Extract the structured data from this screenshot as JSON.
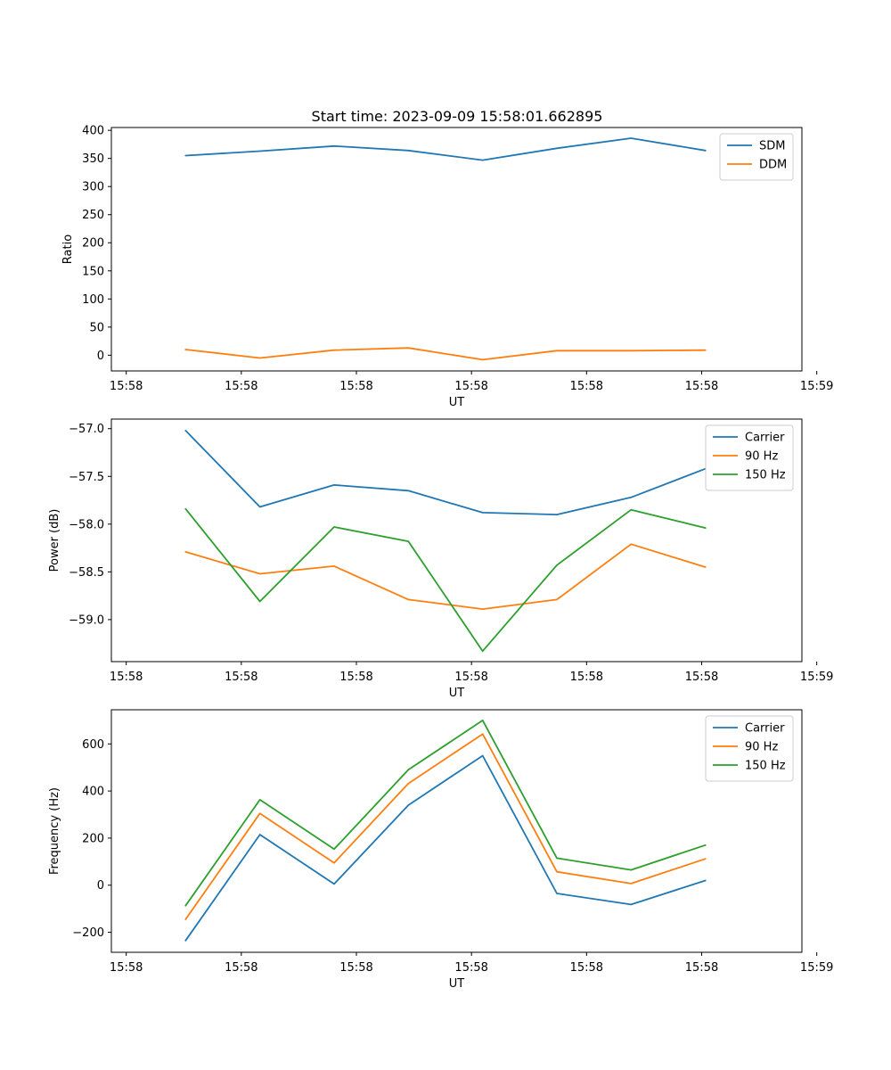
{
  "chart_data": [
    {
      "type": "line",
      "title": "Start time: 2023-09-09 15:58:01.662895",
      "xlabel": "UT",
      "ylabel": "Ratio",
      "x": [
        1,
        2,
        3,
        4,
        5,
        6,
        7,
        8
      ],
      "x_range": [
        0,
        9.3
      ],
      "x_ticks": [
        0.2,
        1.75,
        3.3,
        4.85,
        6.4,
        7.95,
        9.5
      ],
      "x_tick_labels": [
        "15:58",
        "15:58",
        "15:58",
        "15:58",
        "15:58",
        "15:58",
        "15:59"
      ],
      "ylim": [
        -28,
        405
      ],
      "y_ticks": [
        0,
        50,
        100,
        150,
        200,
        250,
        300,
        350,
        400
      ],
      "y_tick_labels": [
        "0",
        "50",
        "100",
        "150",
        "200",
        "250",
        "300",
        "350",
        "400"
      ],
      "series": [
        {
          "name": "SDM",
          "color": "#1f77b4",
          "values": [
            355,
            363,
            372,
            364,
            347,
            368,
            386,
            364
          ]
        },
        {
          "name": "DDM",
          "color": "#ff7f0e",
          "values": [
            10,
            -5,
            9,
            13,
            -8,
            8,
            8,
            9
          ]
        }
      ]
    },
    {
      "type": "line",
      "title": "",
      "xlabel": "UT",
      "ylabel": "Power (dB)",
      "x": [
        1,
        2,
        3,
        4,
        5,
        6,
        7,
        8
      ],
      "x_range": [
        0,
        9.3
      ],
      "x_ticks": [
        0.2,
        1.75,
        3.3,
        4.85,
        6.4,
        7.95,
        9.5
      ],
      "x_tick_labels": [
        "15:58",
        "15:58",
        "15:58",
        "15:58",
        "15:58",
        "15:58",
        "15:59"
      ],
      "ylim": [
        -59.44,
        -56.9
      ],
      "y_ticks": [
        -57.0,
        -57.5,
        -58.0,
        -58.5,
        -59.0
      ],
      "y_tick_labels": [
        "−57.0",
        "−57.5",
        "−58.0",
        "−58.5",
        "−59.0"
      ],
      "series": [
        {
          "name": "Carrier",
          "color": "#1f77b4",
          "values": [
            -57.02,
            -57.82,
            -57.59,
            -57.65,
            -57.88,
            -57.9,
            -57.72,
            -57.42
          ]
        },
        {
          "name": "90 Hz",
          "color": "#ff7f0e",
          "values": [
            -58.29,
            -58.52,
            -58.44,
            -58.79,
            -58.89,
            -58.79,
            -58.21,
            -58.45
          ]
        },
        {
          "name": "150 Hz",
          "color": "#2ca02c",
          "values": [
            -57.84,
            -58.81,
            -58.03,
            -58.18,
            -59.33,
            -58.43,
            -57.85,
            -58.04
          ]
        }
      ]
    },
    {
      "type": "line",
      "title": "",
      "xlabel": "UT",
      "ylabel": "Frequency (Hz)",
      "x": [
        1,
        2,
        3,
        4,
        5,
        6,
        7,
        8
      ],
      "x_range": [
        0,
        9.3
      ],
      "x_ticks": [
        0.2,
        1.75,
        3.3,
        4.85,
        6.4,
        7.95,
        9.5
      ],
      "x_tick_labels": [
        "15:58",
        "15:58",
        "15:58",
        "15:58",
        "15:58",
        "15:58",
        "15:59"
      ],
      "ylim": [
        -285,
        745
      ],
      "y_ticks": [
        -200,
        0,
        200,
        400,
        600
      ],
      "y_tick_labels": [
        "−200",
        "0",
        "200",
        "400",
        "600"
      ],
      "series": [
        {
          "name": "Carrier",
          "color": "#1f77b4",
          "values": [
            -235,
            215,
            5,
            340,
            550,
            -35,
            -82,
            20
          ]
        },
        {
          "name": "90 Hz",
          "color": "#ff7f0e",
          "values": [
            -145,
            305,
            95,
            432,
            642,
            57,
            7,
            112
          ]
        },
        {
          "name": "150 Hz",
          "color": "#2ca02c",
          "values": [
            -87,
            363,
            153,
            490,
            700,
            115,
            65,
            170
          ]
        }
      ]
    }
  ]
}
